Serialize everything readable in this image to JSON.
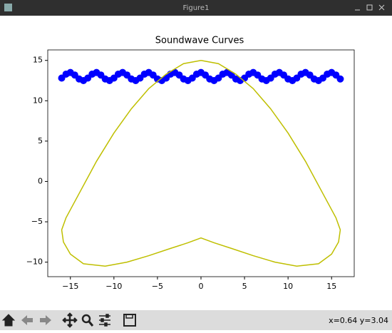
{
  "window": {
    "title": "Figure1",
    "status": "x=0.64 y=3.04"
  },
  "chart_data": {
    "type": "line",
    "title": "Soundwave Curves",
    "xlim": [
      -17.6,
      17.6
    ],
    "ylim": [
      -11.8,
      16.3
    ],
    "xticks": [
      {
        "value": -15,
        "label": "−15"
      },
      {
        "value": -10,
        "label": "−10"
      },
      {
        "value": -5,
        "label": "−5"
      },
      0,
      5,
      10,
      15
    ],
    "yticks": [
      {
        "value": -10,
        "label": "−10"
      },
      {
        "value": -5,
        "label": "−5"
      },
      0,
      5,
      10,
      15
    ],
    "series": [
      {
        "color": "#0000ff",
        "marker": "o",
        "linestyle": "none",
        "x": [
          -16,
          -15.5,
          -15,
          -14.5,
          -14,
          -13.5,
          -13,
          -12.5,
          -12,
          -11.5,
          -11,
          -10.5,
          -10,
          -9.5,
          -9,
          -8.5,
          -8,
          -7.5,
          -7,
          -6.5,
          -6,
          -5.5,
          -5,
          -4.5,
          -4,
          -3.5,
          -3,
          -2.5,
          -2,
          -1.5,
          -1,
          -0.5,
          0,
          0.5,
          1,
          1.5,
          2,
          2.5,
          3,
          3.5,
          4,
          4.5,
          5,
          5.5,
          6,
          6.5,
          7,
          7.5,
          8,
          8.5,
          9,
          9.5,
          10,
          10.5,
          11,
          11.5,
          12,
          12.5,
          13,
          13.5,
          14,
          14.5,
          15,
          15.5,
          16
        ],
        "values": [
          12.81,
          13.3,
          13.5,
          13.19,
          12.7,
          12.5,
          12.81,
          13.3,
          13.5,
          13.19,
          12.7,
          12.5,
          12.81,
          13.3,
          13.5,
          13.19,
          12.7,
          12.5,
          12.81,
          13.3,
          13.5,
          13.19,
          12.7,
          12.5,
          12.81,
          13.3,
          13.5,
          13.19,
          12.7,
          12.5,
          12.81,
          13.3,
          13.5,
          13.19,
          12.7,
          12.5,
          12.81,
          13.3,
          13.5,
          13.19,
          12.7,
          12.5,
          12.81,
          13.3,
          13.5,
          13.19,
          12.7,
          12.5,
          12.81,
          13.3,
          13.5,
          13.19,
          12.7,
          12.5,
          12.81,
          13.3,
          13.5,
          13.19,
          12.7,
          12.5,
          12.81,
          13.3,
          13.5,
          13.19,
          12.7
        ]
      },
      {
        "color": "#bfbf00",
        "x": [
          0,
          2,
          4,
          6,
          8,
          10,
          12,
          14,
          15.5,
          16,
          15.8,
          15,
          13.5,
          11,
          8.5,
          6,
          3.5,
          1.5,
          0,
          -1.5,
          -3.5,
          -6,
          -8.5,
          -11,
          -13.5,
          -15,
          -15.8,
          -16,
          -15.5,
          -14,
          -12,
          -10,
          -8,
          -6,
          -4,
          -2,
          0
        ],
        "values": [
          15,
          14.6,
          13.3,
          11.5,
          9,
          6,
          2.5,
          -1.5,
          -4.5,
          -6,
          -7.5,
          -9,
          -10.2,
          -10.5,
          -10,
          -9.2,
          -8.3,
          -7.6,
          -7,
          -7.6,
          -8.3,
          -9.2,
          -10,
          -10.5,
          -10.2,
          -9,
          -7.5,
          -6,
          -4.5,
          -1.5,
          2.5,
          6,
          9,
          11.5,
          13.3,
          14.6,
          15
        ]
      }
    ]
  }
}
